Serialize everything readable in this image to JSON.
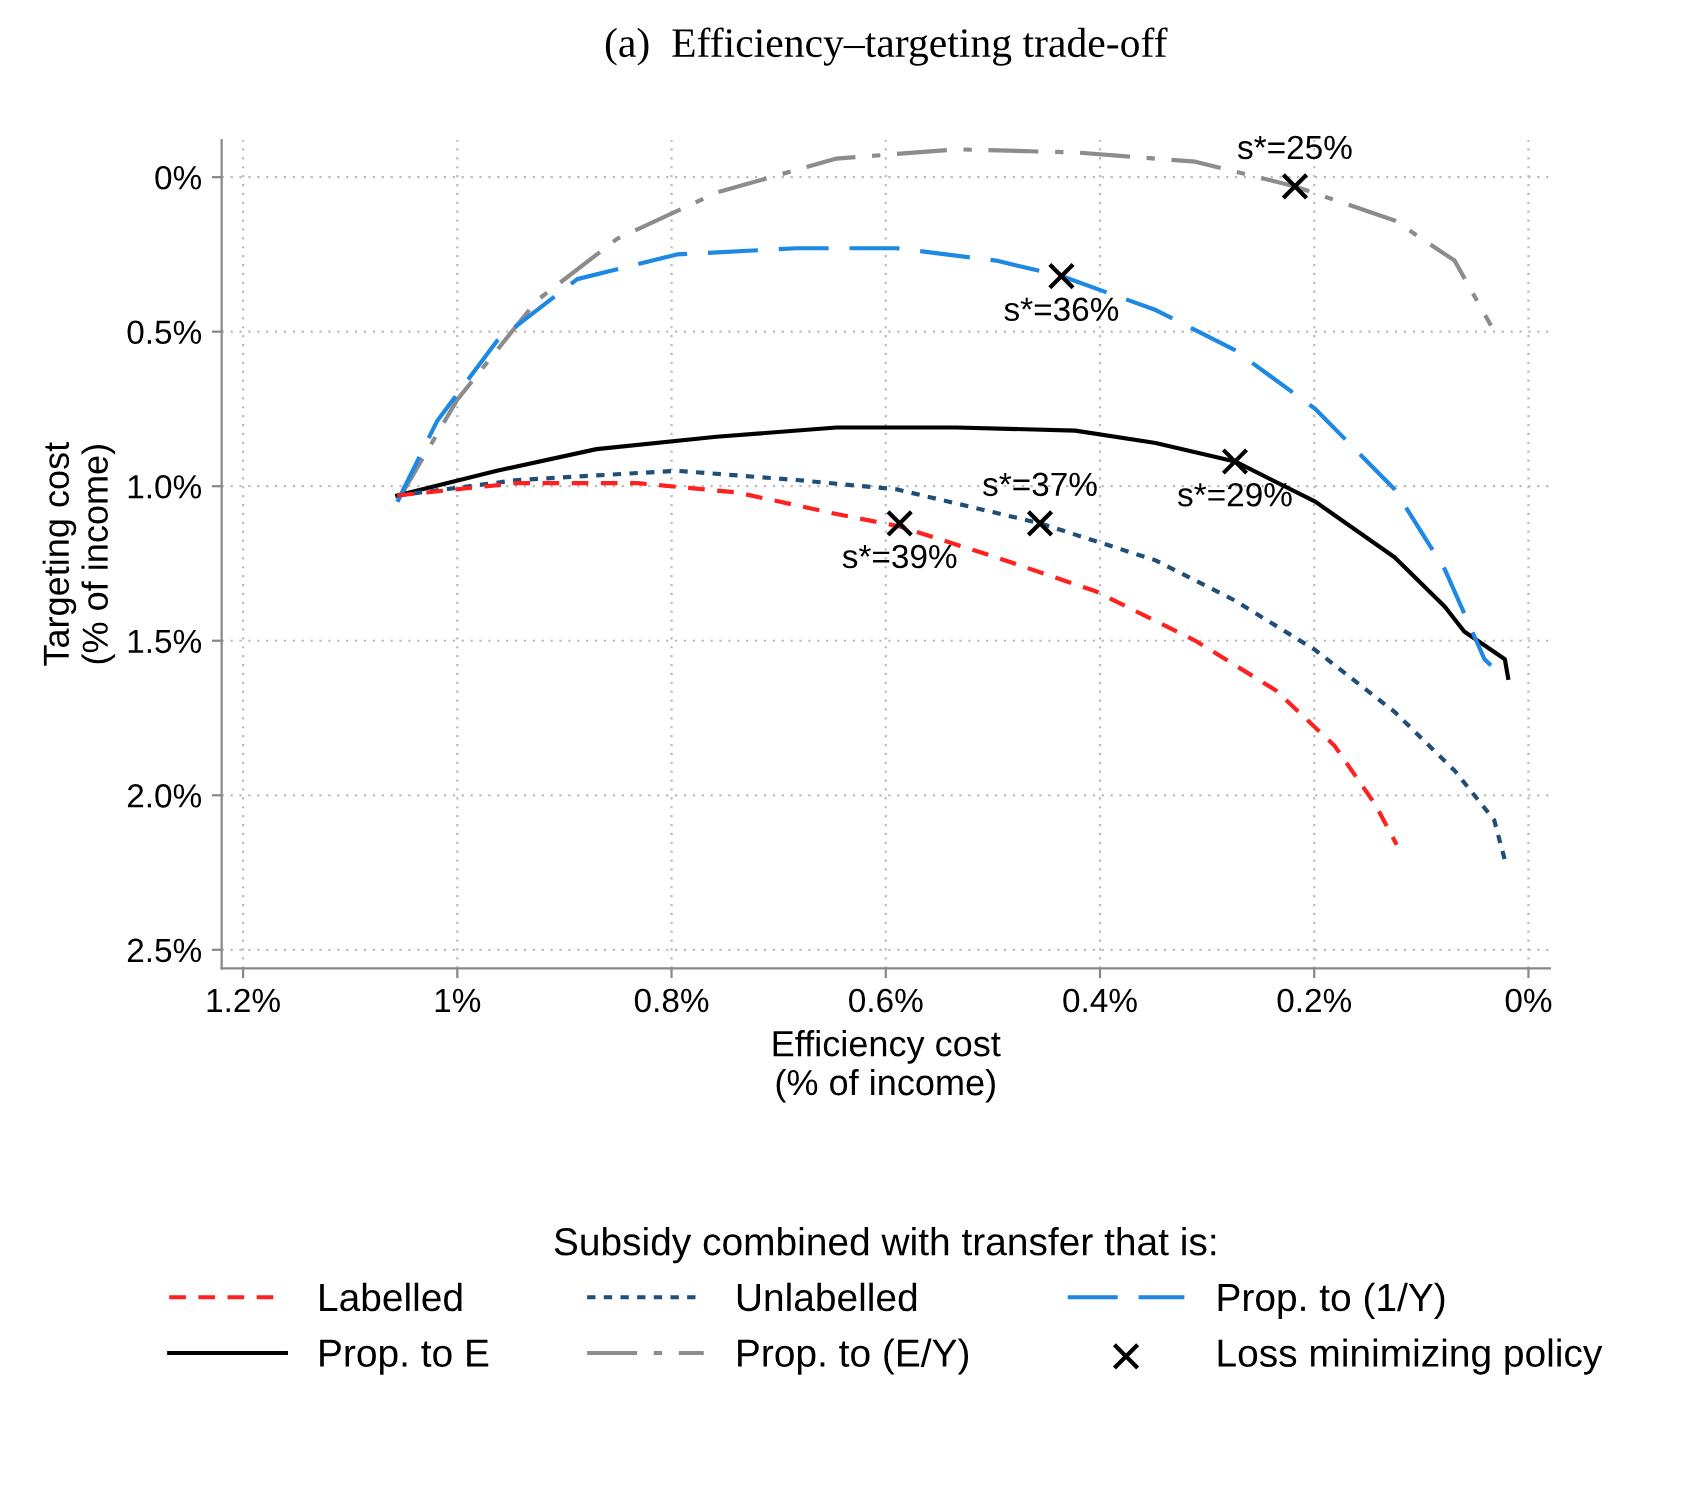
{
  "chart_data": {
    "type": "line",
    "title": "(a)  Efficiency–targeting trade-off",
    "xlabel": "Efficiency cost\n(% of income)",
    "ylabel": "Targeting cost\n(% of income)",
    "legend_title": "Subsidy combined with transfer that is:",
    "xlim": [
      1.22,
      -0.02
    ],
    "ylim": [
      2.56,
      -0.12
    ],
    "xticks": [
      {
        "value": 1.2,
        "label": "1.2%"
      },
      {
        "value": 1.0,
        "label": "1%"
      },
      {
        "value": 0.8,
        "label": "0.8%"
      },
      {
        "value": 0.6,
        "label": "0.6%"
      },
      {
        "value": 0.4,
        "label": "0.4%"
      },
      {
        "value": 0.2,
        "label": "0.2%"
      },
      {
        "value": 0,
        "label": "0%"
      }
    ],
    "yticks": [
      {
        "value": 0,
        "label": "0%"
      },
      {
        "value": 0.5,
        "label": "0.5%"
      },
      {
        "value": 1.0,
        "label": "1.0%"
      },
      {
        "value": 1.5,
        "label": "1.5%"
      },
      {
        "value": 2.0,
        "label": "2.0%"
      },
      {
        "value": 2.5,
        "label": "2.5%"
      }
    ],
    "grid": true,
    "legend": "bottom",
    "series": [
      {
        "name": "Labelled",
        "color": "#ff2020",
        "line_style": "dashed",
        "x": [
          1.056,
          0.944,
          0.832,
          0.739,
          0.646,
          0.587,
          0.497,
          0.404,
          0.311,
          0.236,
          0.181,
          0.143,
          0.123
        ],
        "values": [
          1.03,
          0.99,
          0.99,
          1.02,
          1.09,
          1.13,
          1.23,
          1.34,
          1.5,
          1.66,
          1.84,
          2.03,
          2.16
        ]
      },
      {
        "name": "Unlabelled",
        "color": "#1f4e79",
        "line_style": "dotted",
        "x": [
          1.056,
          0.944,
          0.795,
          0.683,
          0.59,
          0.456,
          0.348,
          0.274,
          0.199,
          0.125,
          0.069,
          0.032,
          0.022
        ],
        "values": [
          1.03,
          0.98,
          0.95,
          0.98,
          1.01,
          1.12,
          1.24,
          1.37,
          1.53,
          1.73,
          1.92,
          2.08,
          2.21
        ]
      },
      {
        "name": "Prop. to (1/Y)",
        "color": "#1e88e5",
        "line_style": "longdash",
        "x": [
          1.056,
          1.019,
          0.963,
          0.888,
          0.795,
          0.683,
          0.59,
          0.497,
          0.436,
          0.348,
          0.274,
          0.199,
          0.125,
          0.078,
          0.041,
          0.035
        ],
        "values": [
          1.05,
          0.79,
          0.53,
          0.33,
          0.25,
          0.23,
          0.23,
          0.27,
          0.32,
          0.43,
          0.56,
          0.75,
          1.01,
          1.27,
          1.56,
          1.58
        ]
      },
      {
        "name": "Prop. to E",
        "color": "#000000",
        "line_style": "solid",
        "x": [
          1.056,
          0.963,
          0.87,
          0.758,
          0.646,
          0.534,
          0.423,
          0.348,
          0.274,
          0.199,
          0.125,
          0.078,
          0.06,
          0.022,
          0.019
        ],
        "values": [
          1.03,
          0.95,
          0.88,
          0.84,
          0.81,
          0.81,
          0.82,
          0.86,
          0.92,
          1.05,
          1.23,
          1.39,
          1.47,
          1.56,
          1.62
        ]
      },
      {
        "name": "Prop. to (E/Y)",
        "color": "#8c8c8c",
        "line_style": "dashdot",
        "x": [
          1.056,
          1.0,
          0.926,
          0.851,
          0.758,
          0.646,
          0.534,
          0.423,
          0.311,
          0.218,
          0.125,
          0.069,
          0.035
        ],
        "values": [
          1.05,
          0.72,
          0.4,
          0.2,
          0.05,
          -0.06,
          -0.09,
          -0.08,
          -0.05,
          0.03,
          0.14,
          0.27,
          0.48
        ]
      },
      {
        "name": "Loss minimizing policy",
        "type": "scatter",
        "marker": "cross",
        "color": "#000000",
        "x": [
          0.218,
          0.436,
          0.274,
          0.456,
          0.587
        ],
        "values": [
          0.03,
          0.32,
          0.92,
          1.12,
          1.12
        ]
      }
    ],
    "annotations": [
      {
        "text": "s*=25%",
        "x": 0.218,
        "y": 0.03
      },
      {
        "text": "s*=36%",
        "x": 0.436,
        "y": 0.32
      },
      {
        "text": "s*=29%",
        "x": 0.274,
        "y": 0.92
      },
      {
        "text": "s*=37%",
        "x": 0.456,
        "y": 1.12
      },
      {
        "text": "s*=39%",
        "x": 0.587,
        "y": 1.12
      }
    ]
  }
}
